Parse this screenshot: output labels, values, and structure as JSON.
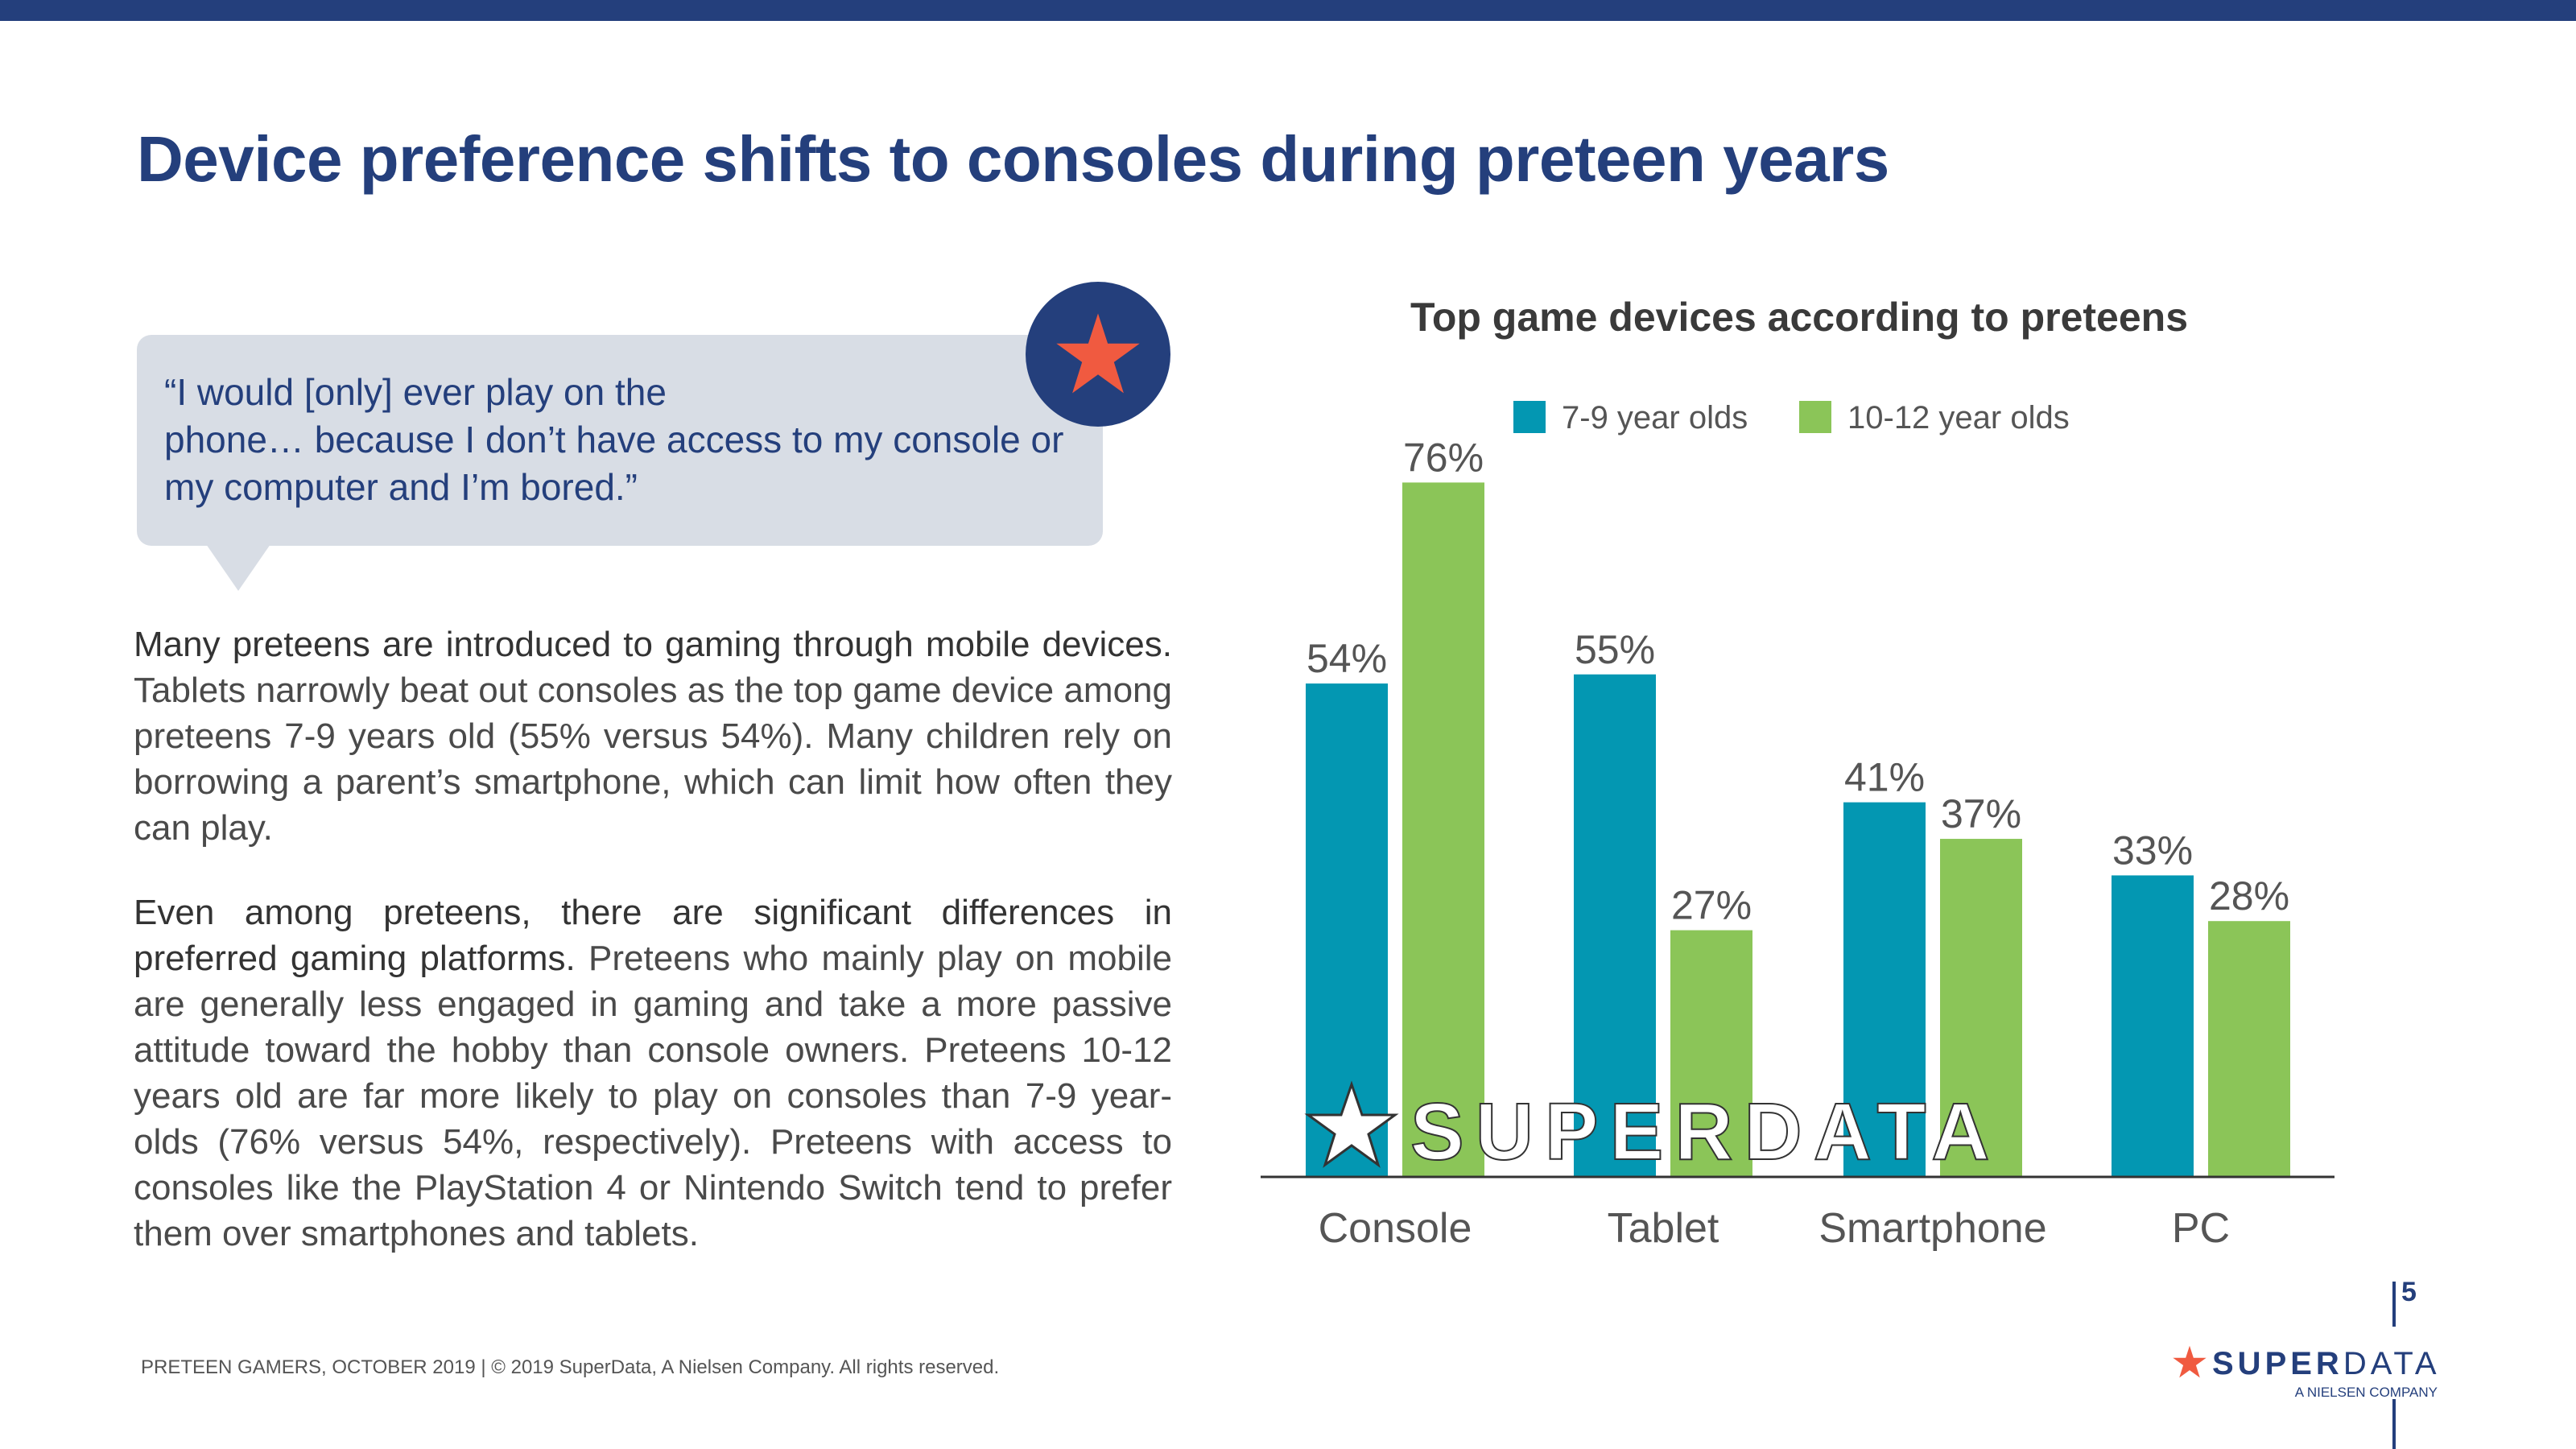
{
  "page": {
    "title": "Device preference shifts to consoles during preteen years",
    "quote": "“I would [only] ever play on the\nphone… because I don’t have access to my console or\nmy computer and I’m bored.”",
    "para1_lead": "Many preteens are introduced to gaming through mobile devices.",
    "para1_rest": " Tablets narrowly beat out consoles as the top game device among preteens 7-9 years old (55% versus 54%). Many children rely on borrowing a parent’s smartphone, which can limit how often they can play.",
    "para2_lead": "Even among preteens, there are significant differences in preferred gaming platforms.",
    "para2_rest": " Preteens who mainly play on mobile are generally less engaged in gaming and take a more passive attitude toward the hobby than console owners. Preteens 10-12 years old are far more likely to play on consoles than 7-9 year-olds (76% versus 54%, respectively). Preteens with access to consoles like the PlayStation 4 or Nintendo Switch tend to prefer them over smartphones and tablets.",
    "footer": "PRETEEN GAMERS, OCTOBER 2019  |  © 2019 SuperData, A Nielsen Company. All rights reserved.",
    "page_number": "5",
    "brand_bold": "SUPER",
    "brand_light": "DATA",
    "brand_sub": "A NIELSEN COMPANY"
  },
  "colors": {
    "navy": "#243f7c",
    "teal": "#0397b2",
    "green": "#8bc558",
    "star_red": "#f05a40",
    "label_gray": "#555555"
  },
  "chart_data": {
    "type": "bar",
    "title": "Top game devices according to preteens",
    "categories": [
      "Console",
      "Tablet",
      "Smartphone",
      "PC"
    ],
    "series": [
      {
        "name": "7-9 year olds",
        "values": [
          54,
          55,
          41,
          33
        ],
        "color": "#0397b2"
      },
      {
        "name": "10-12 year olds",
        "values": [
          76,
          27,
          37,
          28
        ],
        "color": "#8bc558"
      }
    ],
    "value_suffix": "%",
    "ylim": [
      0,
      80
    ],
    "grid": false,
    "legend": "top",
    "watermark": "SUPERDATA"
  }
}
